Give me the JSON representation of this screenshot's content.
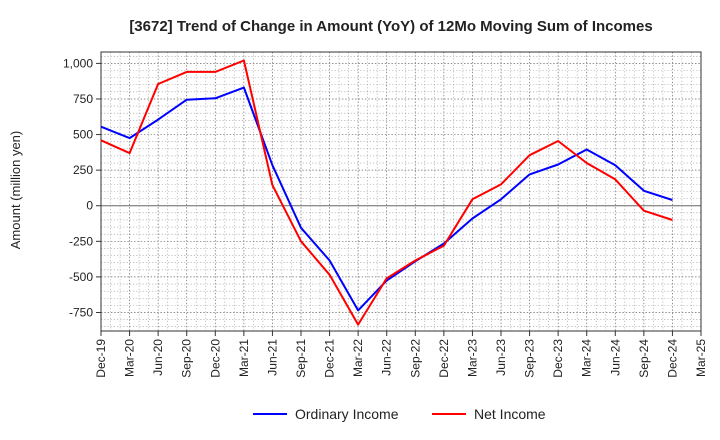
{
  "chart_data": {
    "type": "line",
    "title": "[3672]  Trend of Change in Amount (YoY) of 12Mo Moving Sum of Incomes",
    "ylabel": "Amount (million yen)",
    "xlabel": "",
    "x_ticks": [
      "Dec-19",
      "Mar-20",
      "Jun-20",
      "Sep-20",
      "Dec-20",
      "Mar-21",
      "Jun-21",
      "Sep-21",
      "Dec-21",
      "Mar-22",
      "Jun-22",
      "Sep-22",
      "Dec-22",
      "Mar-23",
      "Jun-23",
      "Sep-23",
      "Dec-23",
      "Mar-24",
      "Jun-24",
      "Sep-24",
      "Dec-24",
      "Mar-25"
    ],
    "y_ticks": [
      -750,
      -500,
      -250,
      0,
      250,
      500,
      750,
      1000
    ],
    "y_tick_labels": [
      "-750",
      "-500",
      "-250",
      "0",
      "250",
      "500",
      "750",
      "1,000"
    ],
    "ylim": [
      -880,
      1080
    ],
    "grid": true,
    "legend_position": "bottom-center",
    "series": [
      {
        "name": "Ordinary Income",
        "color": "#0000ff",
        "values": [
          555,
          475,
          605,
          745,
          755,
          830,
          285,
          -155,
          -385,
          -735,
          -525,
          -390,
          -265,
          -90,
          45,
          220,
          290,
          395,
          285,
          105,
          40,
          null
        ]
      },
      {
        "name": "Net Income",
        "color": "#ff0000",
        "values": [
          460,
          370,
          855,
          940,
          940,
          1020,
          145,
          -250,
          -485,
          -835,
          -510,
          -385,
          -280,
          45,
          150,
          355,
          455,
          300,
          185,
          -35,
          -100,
          null
        ]
      }
    ]
  }
}
